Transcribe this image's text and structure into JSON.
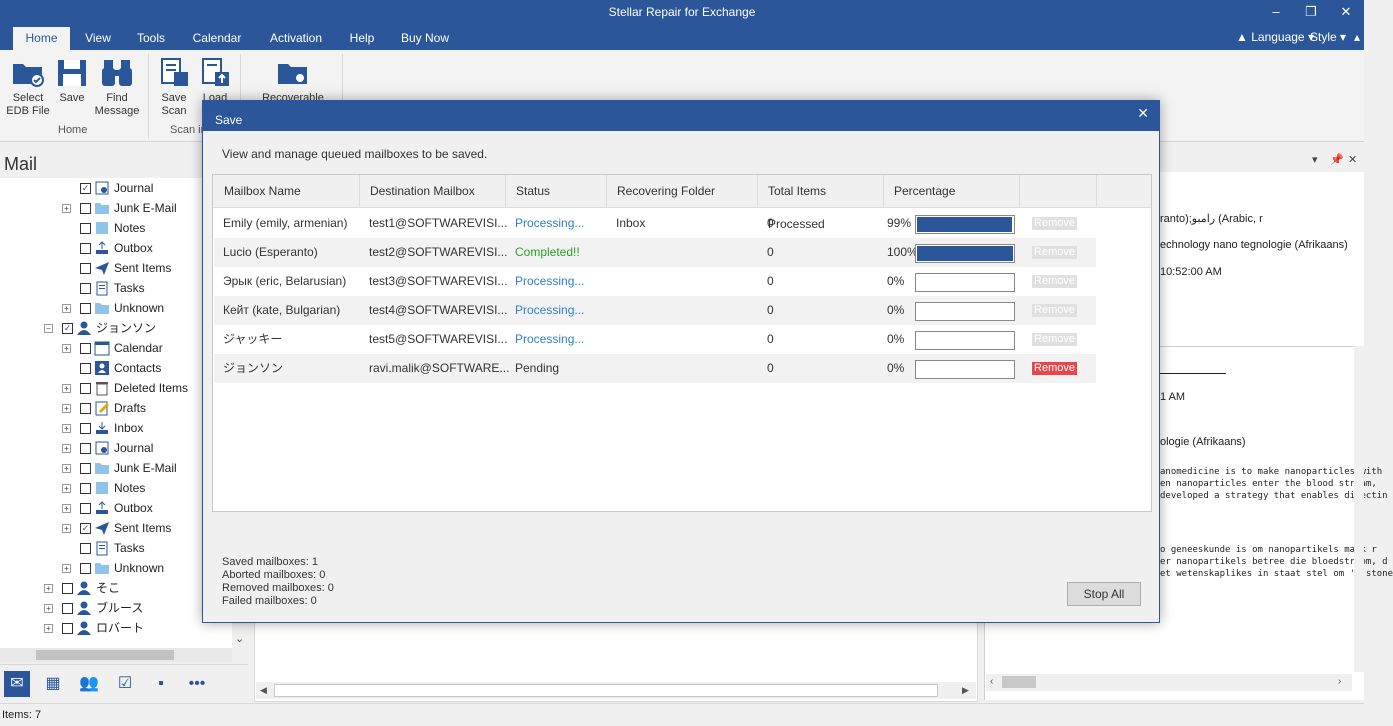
{
  "app": {
    "title": "Stellar Repair for Exchange"
  },
  "tabs": [
    "Home",
    "View",
    "Tools",
    "Calendar",
    "Activation",
    "Help",
    "Buy Now"
  ],
  "tab_right": {
    "language": "Language",
    "style": "Style"
  },
  "ribbon": {
    "select_edb": "Select\nEDB File",
    "save": "Save",
    "find_message": "Find\nMessage",
    "save_scan": "Save\nScan",
    "load_scan": "Load",
    "recoverable": "Recoverable",
    "group_home": "Home",
    "group_scan": "Scan in"
  },
  "left": {
    "header": "Mail",
    "tree": [
      {
        "label": "Journal",
        "icon": "journal-icon",
        "checked": true,
        "expander": false
      },
      {
        "label": "Junk E-Mail",
        "icon": "folder-icon",
        "checked": false,
        "expander": true
      },
      {
        "label": "Notes",
        "icon": "notes-icon",
        "checked": false,
        "expander": false
      },
      {
        "label": "Outbox",
        "icon": "outbox-icon",
        "checked": false,
        "expander": false
      },
      {
        "label": "Sent Items",
        "icon": "sent-icon",
        "checked": false,
        "expander": false
      },
      {
        "label": "Tasks",
        "icon": "tasks-icon",
        "checked": false,
        "expander": false
      },
      {
        "label": "Unknown",
        "icon": "folder-icon",
        "checked": false,
        "expander": true
      },
      {
        "label": "ジョンソン",
        "icon": "user-icon",
        "checked": true,
        "expander": true,
        "level": 0
      },
      {
        "label": "Calendar",
        "icon": "calendar-icon",
        "checked": false,
        "expander": true
      },
      {
        "label": "Contacts",
        "icon": "contacts-icon",
        "checked": false,
        "expander": false
      },
      {
        "label": "Deleted Items",
        "icon": "trash-icon",
        "checked": false,
        "expander": true
      },
      {
        "label": "Drafts",
        "icon": "drafts-icon",
        "checked": false,
        "expander": true
      },
      {
        "label": "Inbox",
        "icon": "inbox-icon",
        "checked": false,
        "expander": true
      },
      {
        "label": "Journal",
        "icon": "journal-icon",
        "checked": false,
        "expander": true
      },
      {
        "label": "Junk E-Mail",
        "icon": "folder-icon",
        "checked": false,
        "expander": true
      },
      {
        "label": "Notes",
        "icon": "notes-icon",
        "checked": false,
        "expander": true
      },
      {
        "label": "Outbox",
        "icon": "outbox-icon",
        "checked": false,
        "expander": true
      },
      {
        "label": "Sent Items",
        "icon": "sent-icon",
        "checked": true,
        "expander": true
      },
      {
        "label": "Tasks",
        "icon": "tasks-icon",
        "checked": false,
        "expander": false
      },
      {
        "label": "Unknown",
        "icon": "folder-icon",
        "checked": false,
        "expander": true
      },
      {
        "label": "そこ",
        "icon": "user-icon",
        "checked": false,
        "expander": true,
        "level": 0
      },
      {
        "label": "ブルース",
        "icon": "user-icon",
        "checked": false,
        "expander": true,
        "level": 0
      },
      {
        "label": "ロバート",
        "icon": "user-icon",
        "checked": false,
        "expander": true,
        "level": 0
      }
    ]
  },
  "status": {
    "items": "Items: 7"
  },
  "right_fragments": [
    "ranto);رامبو (Arabic, r",
    "echnology  nano tegnologie (Afrikaans)",
    "10:52:00 AM",
    "1 AM",
    "ologie (Afrikaans)",
    "anomedicine is to make nanoparticles with",
    "en nanoparticles enter the blood stream,",
    "developed a strategy that enables directin",
    "o geneeskunde is om nanopartikels mask r",
    "er nanopartikels betree die bloedstroom, d",
    "et wetenskaplikes in staat stel om 'n stone"
  ],
  "dialog": {
    "title": "Save",
    "close": "✕",
    "description": "View and manage queued mailboxes to be saved.",
    "columns": [
      "Mailbox Name",
      "Destination Mailbox",
      "Status",
      "Recovering Folder",
      "Total Items Processed",
      "Percentage"
    ],
    "rows": [
      {
        "name": "Emily (emily, armenian)",
        "dest": "test1@SOFTWAREVISI...",
        "status": "Processing...",
        "status_type": "processing",
        "folder": "Inbox",
        "total": "0",
        "pct_label": "99%",
        "progress": 0.99,
        "remove": "Remove",
        "remove_enabled": false
      },
      {
        "name": "Lucio (Esperanto)",
        "dest": "test2@SOFTWAREVISI...",
        "status": "Completed!!",
        "status_type": "completed",
        "folder": "",
        "total": "0",
        "pct_label": "100%",
        "progress": 1.0,
        "remove": "Remove",
        "remove_enabled": false
      },
      {
        "name": "Эрык (eric, Belarusian)",
        "dest": "test3@SOFTWAREVISI...",
        "status": "Processing...",
        "status_type": "processing",
        "folder": "",
        "total": "0",
        "pct_label": "0%",
        "progress": 0,
        "remove": "Remove",
        "remove_enabled": false
      },
      {
        "name": "Кейт (kate, Bulgarian)",
        "dest": "test4@SOFTWAREVISI...",
        "status": "Processing...",
        "status_type": "processing",
        "folder": "",
        "total": "0",
        "pct_label": "0%",
        "progress": 0,
        "remove": "Remove",
        "remove_enabled": false
      },
      {
        "name": "ジャッキー",
        "dest": "test5@SOFTWAREVISI...",
        "status": "Processing...",
        "status_type": "processing",
        "folder": "",
        "total": "0",
        "pct_label": "0%",
        "progress": 0,
        "remove": "Remove",
        "remove_enabled": false
      },
      {
        "name": "ジョンソン",
        "dest": "ravi.malik@SOFTWARE...",
        "status": "Pending",
        "status_type": "pending",
        "folder": "",
        "total": "0",
        "pct_label": "0%",
        "progress": 0,
        "remove": "Remove",
        "remove_enabled": true
      }
    ],
    "summary": {
      "saved": "Saved mailboxes: 1",
      "aborted": "Aborted mailboxes: 0",
      "removed": "Removed mailboxes: 0",
      "failed": "Failed mailboxes: 0"
    },
    "stop_all": "Stop All"
  },
  "colors": {
    "accent": "#2b579a",
    "processing": "#2f80c4",
    "completed": "#2a9d2a",
    "remove_active": "#e8464a"
  }
}
